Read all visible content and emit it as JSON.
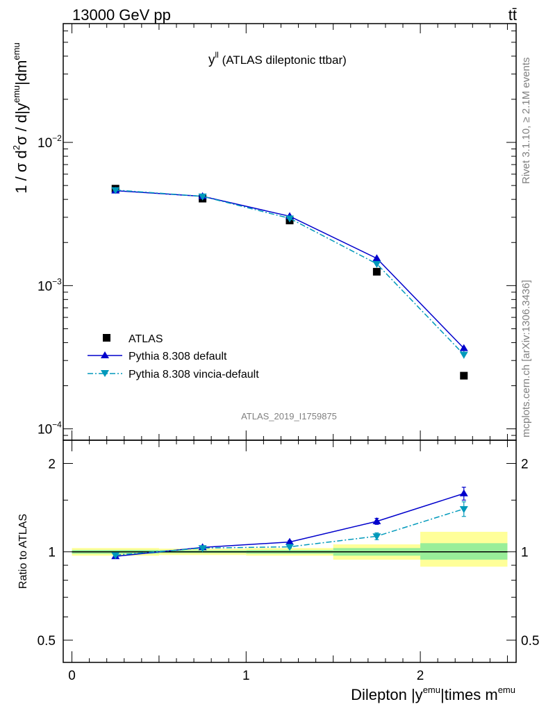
{
  "header": {
    "energy_label": "13000 GeV pp",
    "process_label": "tt̄"
  },
  "side_labels": {
    "rivet": "Rivet 3.1.10, ≥ 2.1M events",
    "mcplots": "mcplots.cern.ch [arXiv:1306.3436]"
  },
  "chart_data": [
    {
      "type": "scatter",
      "panel": "main",
      "title_main": "y",
      "title_sup": "ll",
      "title_rest": " (ATLAS dileptonic ttbar)",
      "analysis_id": "ATLAS_2019_I1759875",
      "ylabel_parts": [
        "1 / σ  d",
        "2",
        "σ / d|y",
        "emu",
        "|dm",
        "emu"
      ],
      "yscale": "log",
      "ylim": [
        8.33e-05,
        0.0675
      ],
      "xlim": [
        -0.05,
        2.55
      ],
      "yticks": [
        {
          "value": 0.01,
          "base": "10",
          "exp": "−2"
        },
        {
          "value": 0.001,
          "base": "10",
          "exp": "−3"
        },
        {
          "value": 0.0001,
          "base": "10",
          "exp": "−4"
        }
      ],
      "legend": {
        "position": "lower-left",
        "entries": [
          "ATLAS",
          "Pythia 8.308 default",
          "Pythia 8.308 vincia-default"
        ]
      },
      "series": [
        {
          "name": "ATLAS",
          "marker": "square",
          "color": "#000000",
          "x": [
            0.25,
            0.75,
            1.25,
            1.75,
            2.25
          ],
          "y": [
            0.00475,
            0.00405,
            0.00285,
            0.00125,
            0.000235
          ]
        },
        {
          "name": "Pythia 8.308 default",
          "marker": "triangle-up",
          "color": "#0000cc",
          "line": "solid",
          "x": [
            0.25,
            0.75,
            1.25,
            1.75,
            2.25
          ],
          "y": [
            0.0046,
            0.0042,
            0.00305,
            0.00155,
            0.000365
          ],
          "err": [
            4e-05,
            4e-05,
            3e-05,
            2e-05,
            2e-05
          ]
        },
        {
          "name": "Pythia 8.308 vincia-default",
          "marker": "triangle-down",
          "color": "#0099bb",
          "line": "dashdot",
          "x": [
            0.25,
            0.75,
            1.25,
            1.75,
            2.25
          ],
          "y": [
            0.00465,
            0.0042,
            0.00295,
            0.00142,
            0.00033
          ],
          "err": [
            4e-05,
            4e-05,
            3e-05,
            2e-05,
            2e-05
          ]
        }
      ]
    },
    {
      "type": "scatter",
      "panel": "ratio",
      "ylabel": "Ratio to ATLAS",
      "xlabel_parts": [
        "Dilepton |y",
        "emu",
        "|times m",
        "emu"
      ],
      "yscale": "log",
      "ylim": [
        0.42,
        2.4
      ],
      "xlim": [
        -0.05,
        2.55
      ],
      "xticks": [
        {
          "value": 0,
          "label": "0"
        },
        {
          "value": 1,
          "label": "1"
        },
        {
          "value": 2,
          "label": "2"
        }
      ],
      "yticks": [
        {
          "value": 0.5,
          "label": "0.5"
        },
        {
          "value": 1,
          "label": "1"
        },
        {
          "value": 2,
          "label": "2"
        }
      ],
      "bands": [
        {
          "x0": 0.0,
          "x1": 0.5,
          "inner": [
            0.985,
            1.015
          ],
          "outer": [
            0.97,
            1.03
          ]
        },
        {
          "x0": 0.5,
          "x1": 1.0,
          "inner": [
            0.99,
            1.012
          ],
          "outer": [
            0.975,
            1.025
          ]
        },
        {
          "x0": 1.0,
          "x1": 1.5,
          "inner": [
            0.985,
            1.015
          ],
          "outer": [
            0.97,
            1.03
          ]
        },
        {
          "x0": 1.5,
          "x1": 2.0,
          "inner": [
            0.97,
            1.03
          ],
          "outer": [
            0.94,
            1.06
          ]
        },
        {
          "x0": 2.0,
          "x1": 2.5,
          "inner": [
            0.94,
            1.07
          ],
          "outer": [
            0.89,
            1.17
          ]
        }
      ],
      "series": [
        {
          "name": "Pythia 8.308 default",
          "marker": "triangle-up",
          "color": "#0000cc",
          "line": "solid",
          "x": [
            0.25,
            0.75,
            1.25,
            1.75,
            2.25
          ],
          "y": [
            0.965,
            1.035,
            1.08,
            1.27,
            1.58
          ],
          "err": [
            0.008,
            0.008,
            0.01,
            0.03,
            0.08
          ]
        },
        {
          "name": "Pythia 8.308 vincia-default",
          "marker": "triangle-down",
          "color": "#0099bb",
          "line": "dashdot",
          "x": [
            0.25,
            0.75,
            1.25,
            1.75,
            2.25
          ],
          "y": [
            0.975,
            1.03,
            1.04,
            1.13,
            1.4
          ],
          "err": [
            0.008,
            0.008,
            0.01,
            0.03,
            0.08
          ]
        }
      ]
    }
  ]
}
